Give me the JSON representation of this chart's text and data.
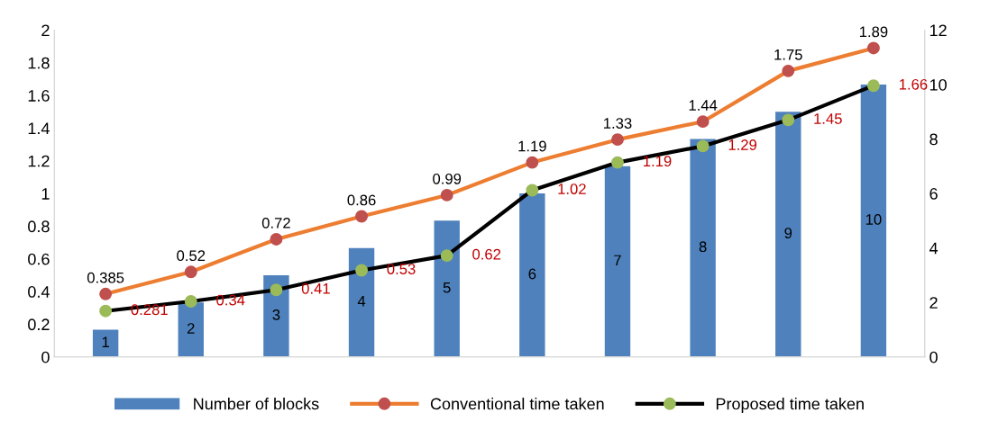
{
  "chart_data": {
    "type": "bar",
    "categories": [
      null,
      null,
      null,
      null,
      null,
      null,
      null,
      null,
      null,
      null
    ],
    "series": [
      {
        "name": "Number of blocks",
        "axis": "y2",
        "color": "#4f81bd",
        "values": [
          1,
          2,
          3,
          4,
          5,
          6,
          7,
          8,
          9,
          10
        ]
      },
      {
        "name": "Conventional time taken",
        "type": "line",
        "color": "#ed7d31",
        "values": [
          0.385,
          0.52,
          0.72,
          0.86,
          0.99,
          1.19,
          1.33,
          1.44,
          1.75,
          1.89
        ]
      },
      {
        "name": "Proposed time taken",
        "type": "line",
        "color": "#000000",
        "values": [
          0.281,
          0.34,
          0.41,
          0.53,
          0.62,
          1.02,
          1.19,
          1.29,
          1.45,
          1.66
        ]
      }
    ],
    "ylim": [
      0,
      2
    ],
    "yticks": [
      0,
      0.2,
      0.4,
      0.6,
      0.8,
      1,
      1.2,
      1.4,
      1.6,
      1.8,
      2
    ],
    "y2lim": [
      0,
      12
    ],
    "y2ticks": [
      0,
      2,
      4,
      6,
      8,
      10,
      12
    ],
    "data_labels": true,
    "marker": "circle",
    "line_style": "solid",
    "grid": false,
    "legend": "bottom"
  }
}
